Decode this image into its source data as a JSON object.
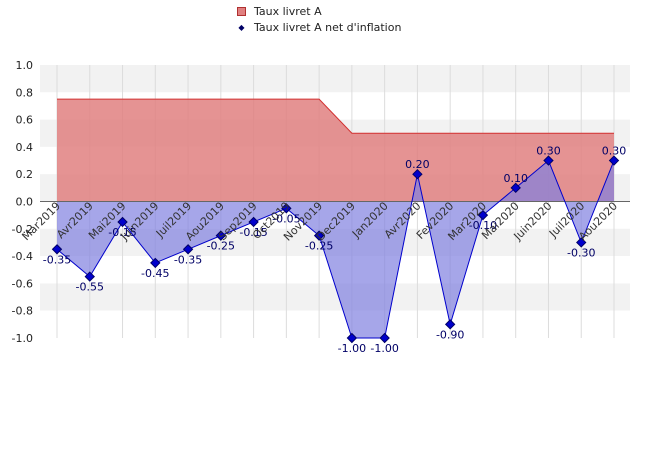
{
  "chart_data": {
    "type": "area",
    "categories": [
      "Mar2019",
      "Avr2019",
      "Mai2019",
      "Juin2019",
      "Juil2019",
      "Aou2019",
      "Sep2019",
      "Oct2019",
      "Nov2019",
      "Dec2019",
      "Jan2020",
      "Avr2020",
      "Fev2020",
      "Mar2020",
      "Mai2020",
      "Juin2020",
      "Juil2020",
      "Aou2020"
    ],
    "series": [
      {
        "name": "Taux livret A",
        "kind": "area",
        "color": "#d23030",
        "fill": "#e08080",
        "values": [
          0.75,
          0.75,
          0.75,
          0.75,
          0.75,
          0.75,
          0.75,
          0.75,
          0.75,
          0.5,
          0.5,
          0.5,
          0.5,
          0.5,
          0.5,
          0.5,
          0.5,
          0.5
        ]
      },
      {
        "name": "Taux livret A net d'inflation",
        "kind": "area-markers",
        "color": "#0000cc",
        "fill": "#8080e0",
        "values": [
          -0.35,
          -0.55,
          -0.15,
          -0.45,
          -0.35,
          -0.25,
          -0.15,
          -0.05,
          -0.25,
          -1.0,
          -1.0,
          0.2,
          -0.9,
          -0.1,
          0.1,
          0.3,
          -0.3,
          0.3
        ]
      }
    ],
    "data_labels": [
      "-0.35",
      "-0.55",
      "-0.15",
      "-0.45",
      "-0.35",
      "-0.25",
      "-0.15",
      "-0.05",
      "-0.25",
      "-1.00",
      "-1.00",
      "0.20",
      "-0.90",
      "-0.10",
      "0.10",
      "0.30",
      "-0.30",
      "0.30"
    ],
    "ylim": [
      -1.0,
      1.0
    ],
    "yticks": [
      "1.0",
      "0.8",
      "0.6",
      "0.4",
      "0.2",
      "0.0",
      "-0.2",
      "-0.4",
      "-0.6",
      "-0.8",
      "-1.0"
    ],
    "grid": true,
    "legend_position": "top"
  }
}
